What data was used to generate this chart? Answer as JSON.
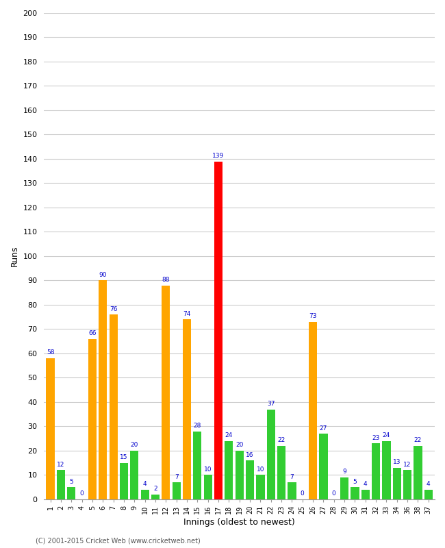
{
  "innings_labels": [
    "1",
    "2",
    "3",
    "4",
    "5",
    "6",
    "7",
    "8",
    "9",
    "10",
    "11",
    "12",
    "13",
    "14",
    "15",
    "16",
    "17",
    "18",
    "19",
    "20",
    "21",
    "22",
    "23",
    "24",
    "25",
    "26",
    "27",
    "28",
    "29",
    "30",
    "31",
    "32",
    "33",
    "34",
    "36",
    "38",
    "37"
  ],
  "values": [
    58,
    12,
    5,
    0,
    66,
    90,
    76,
    15,
    20,
    4,
    2,
    88,
    7,
    74,
    28,
    10,
    139,
    24,
    20,
    16,
    10,
    37,
    22,
    7,
    0,
    73,
    27,
    0,
    9,
    5,
    4,
    23,
    24,
    13,
    12,
    22,
    4
  ],
  "colors": [
    "orange",
    "limegreen",
    "limegreen",
    "limegreen",
    "orange",
    "orange",
    "orange",
    "limegreen",
    "limegreen",
    "limegreen",
    "limegreen",
    "orange",
    "limegreen",
    "orange",
    "limegreen",
    "limegreen",
    "red",
    "limegreen",
    "limegreen",
    "limegreen",
    "limegreen",
    "limegreen",
    "limegreen",
    "limegreen",
    "limegreen",
    "orange",
    "limegreen",
    "limegreen",
    "limegreen",
    "limegreen",
    "limegreen",
    "limegreen",
    "limegreen",
    "limegreen",
    "limegreen",
    "limegreen",
    "limegreen"
  ],
  "xlabel": "Innings (oldest to newest)",
  "ylabel": "Runs",
  "ylim": [
    0,
    200
  ],
  "yticks": [
    0,
    10,
    20,
    30,
    40,
    50,
    60,
    70,
    80,
    90,
    100,
    110,
    120,
    130,
    140,
    150,
    160,
    170,
    180,
    190,
    200
  ],
  "background_color": "#ffffff",
  "grid_color": "#cccccc",
  "label_color": "#0000cc",
  "copyright": "(C) 2001-2015 Cricket Web (www.cricketweb.net)"
}
